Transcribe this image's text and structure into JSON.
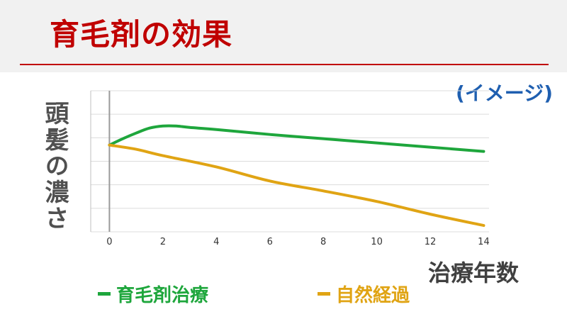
{
  "header": {
    "title": "育毛剤の効果",
    "note": "(イメージ)"
  },
  "colors": {
    "title": "#c00000",
    "note": "#1f5fb0",
    "treatment": "#1ea63c",
    "natural": "#e0a414"
  },
  "chart_data": {
    "type": "line",
    "xlabel": "治療年数",
    "ylabel": "頭髪の濃さ",
    "x_ticks": [
      0,
      2,
      4,
      6,
      8,
      10,
      12,
      14
    ],
    "xlim": [
      -0.7,
      14.2
    ],
    "ylim": [
      0,
      10
    ],
    "grid": true,
    "y_tick_labels": false,
    "legend_position": "bottom",
    "series": [
      {
        "name": "育毛剤治療",
        "color": "#1ea63c",
        "x": [
          0,
          0.5,
          1,
          1.5,
          2,
          2.5,
          3,
          4,
          6,
          8,
          10,
          12,
          14
        ],
        "y": [
          6.15,
          6.6,
          7.0,
          7.35,
          7.5,
          7.5,
          7.4,
          7.25,
          6.9,
          6.6,
          6.3,
          6.0,
          5.7
        ]
      },
      {
        "name": "自然経過",
        "color": "#e0a414",
        "x": [
          0,
          1,
          2,
          4,
          6,
          8,
          10,
          12,
          14
        ],
        "y": [
          6.15,
          5.85,
          5.4,
          4.6,
          3.6,
          2.9,
          2.15,
          1.25,
          0.45
        ]
      }
    ]
  }
}
